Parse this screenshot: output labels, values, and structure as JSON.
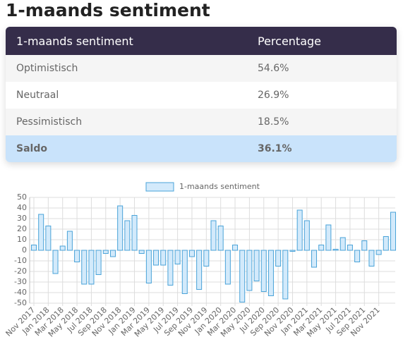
{
  "header": {
    "title": "1-maands sentiment"
  },
  "table": {
    "header": [
      "1-maands sentiment",
      "Percentage"
    ],
    "rows": [
      [
        "Optimistisch",
        "54.6%"
      ],
      [
        "Neutraal",
        "26.9%"
      ],
      [
        "Pessimistisch",
        "18.5%"
      ],
      [
        "Saldo",
        "36.1%"
      ]
    ]
  },
  "chart_data": {
    "type": "bar",
    "categories": [
      "Nov 2017",
      null,
      "Jan 2018",
      null,
      "Mar 2018",
      null,
      "May 2018",
      null,
      "Jul 2018",
      null,
      "Sep 2018",
      null,
      "Nov 2018",
      null,
      "Jan 2019",
      null,
      "Mar 2019",
      null,
      "May 2019",
      null,
      "Jul 2019",
      null,
      "Sep 2019",
      null,
      "Nov 2019",
      null,
      "Jan 2020",
      null,
      "Mar 2020",
      null,
      "May 2020",
      null,
      "Jul 2020",
      null,
      "Sep 2020",
      null,
      "Nov 2020",
      null,
      "Jan 2021",
      null,
      "Mar 2021",
      null,
      "May 2021",
      null,
      "Jul 2021",
      null,
      "Sep 2021",
      null,
      "Nov 2021",
      null,
      null
    ],
    "series": [
      {
        "name": "1-maands sentiment",
        "color": "#d3eafb",
        "stroke": "#4aa3d8",
        "values": [
          5,
          34,
          23,
          -22,
          4,
          18,
          -11,
          -32,
          -32,
          -23,
          -3,
          -6,
          42,
          28,
          33,
          -3,
          -31,
          -14,
          -14,
          -33,
          -13,
          -41,
          -6,
          -37,
          -15,
          28,
          23,
          -32,
          5,
          -49,
          -38,
          -29,
          -39,
          -43,
          -15,
          -46,
          -1,
          38,
          28,
          -16,
          5,
          24,
          1,
          12,
          5,
          -11,
          9,
          -15,
          -4,
          13,
          36
        ]
      }
    ],
    "ylim": [
      -50,
      50
    ],
    "yticks": [
      -50,
      -40,
      -30,
      -20,
      -10,
      0,
      10,
      20,
      30,
      40,
      50
    ],
    "grid": true,
    "legend": "top"
  }
}
